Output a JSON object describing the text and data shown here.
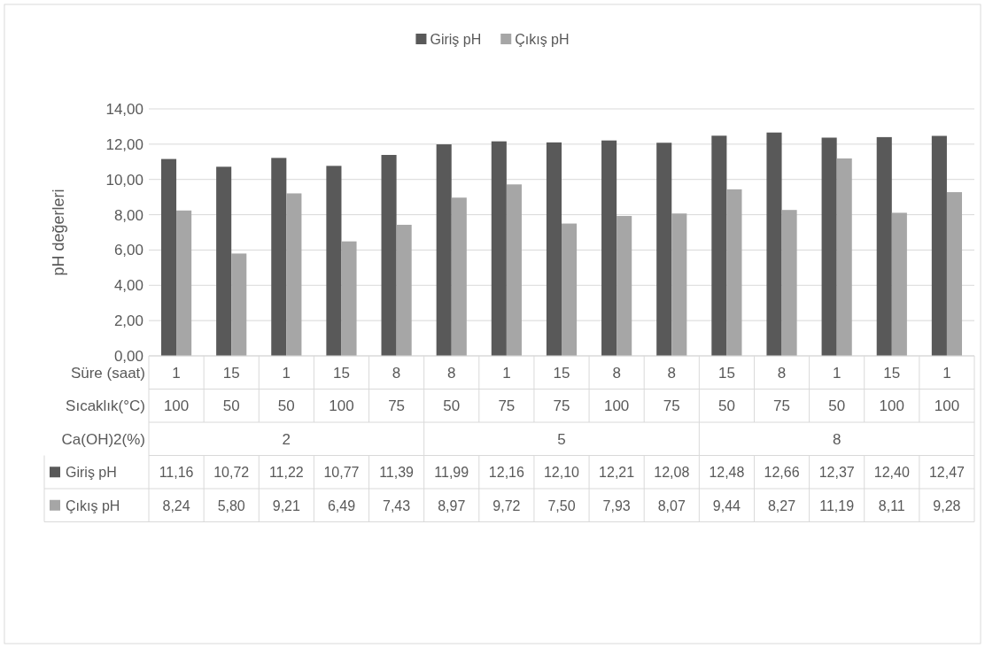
{
  "chart_data": {
    "type": "bar",
    "ylabel": "pH değerleri",
    "categories": [
      "1\n100",
      "15\n50",
      "1\n50",
      "15\n100",
      "8\n75",
      "8\n50",
      "1\n75",
      "15\n75",
      "8\n100",
      "8\n75",
      "15\n50",
      "8\n75",
      "1\n50",
      "15\n100",
      "1\n100"
    ],
    "annotations": [
      "Süre (saat)",
      "Sıcaklık(°C)",
      "Ca(OH)2(%)",
      "2",
      "5",
      "8"
    ],
    "series": [
      {
        "name": "Giriş pH",
        "color": "#595959",
        "values": [
          11.16,
          10.72,
          11.22,
          10.77,
          11.39,
          11.99,
          12.16,
          12.1,
          12.21,
          12.08,
          12.48,
          12.66,
          12.37,
          12.4,
          12.47
        ],
        "value_labels": [
          "11,16",
          "10,72",
          "11,22",
          "10,77",
          "11,39",
          "11,99",
          "12,16",
          "12,10",
          "12,21",
          "12,08",
          "12,48",
          "12,66",
          "12,37",
          "12,40",
          "12,47"
        ]
      },
      {
        "name": "Çıkış pH",
        "color": "#a6a6a6",
        "values": [
          8.24,
          5.8,
          9.21,
          6.49,
          7.43,
          8.97,
          9.72,
          7.5,
          7.93,
          8.07,
          9.44,
          8.27,
          11.19,
          8.11,
          9.28
        ],
        "value_labels": [
          "8,24",
          "5,80",
          "9,21",
          "6,49",
          "7,43",
          "8,97",
          "9,72",
          "7,50",
          "7,93",
          "8,07",
          "9,44",
          "8,27",
          "11,19",
          "8,11",
          "9,28"
        ]
      }
    ],
    "ylim": [
      0,
      14
    ],
    "yticks": [
      {
        "value": 0,
        "label": "0,00"
      },
      {
        "value": 2,
        "label": "2,00"
      },
      {
        "value": 4,
        "label": "4,00"
      },
      {
        "value": 6,
        "label": "6,00"
      },
      {
        "value": 8,
        "label": "8,00"
      },
      {
        "value": 10,
        "label": "10,00"
      },
      {
        "value": 12,
        "label": "12,00"
      },
      {
        "value": 14,
        "label": "14,00"
      }
    ],
    "grid": "y",
    "legend": "top"
  }
}
